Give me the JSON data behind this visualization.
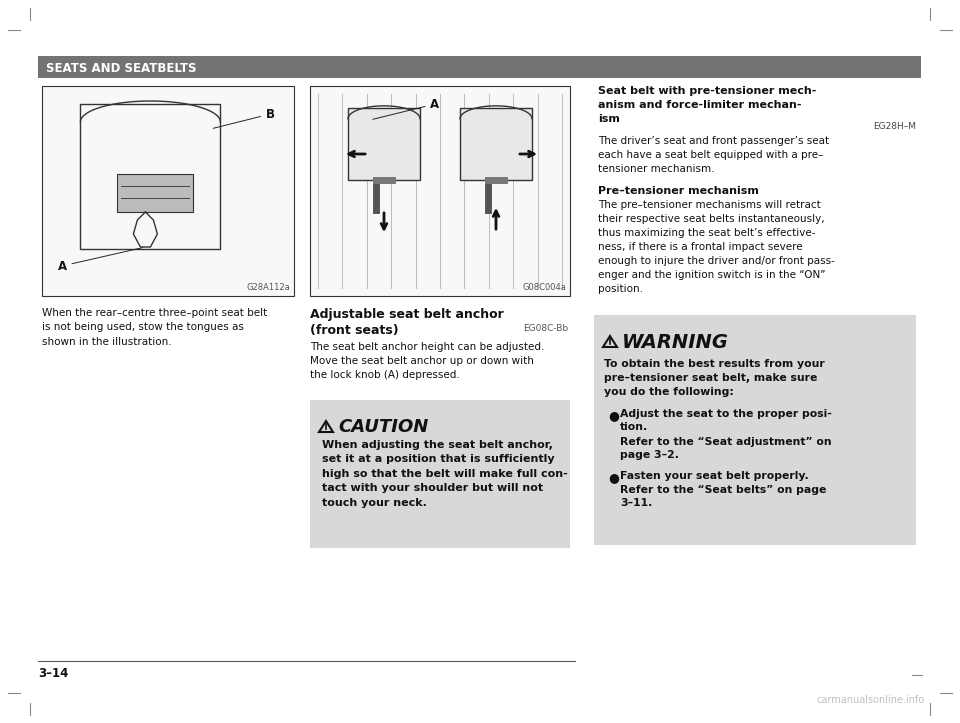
{
  "page_bg": "#ffffff",
  "header_bg": "#737373",
  "header_text": "SEATS AND SEATBELTS",
  "header_text_color": "#ffffff",
  "page_number": "3–14",
  "left_img_label": "G28A112a",
  "left_caption": "When the rear–centre three–point seat belt\nis not being used, stow the tongues as\nshown in the illustration.",
  "right_img_label": "G08C004a",
  "adj_title1": "Adjustable seat belt anchor",
  "adj_title2": "(front seats)",
  "adj_code": "EG08C-Bb",
  "adj_body": "The seat belt anchor height can be adjusted.\nMove the seat belt anchor up or down with\nthe lock knob (A) depressed.",
  "caution_title": "CAUTION",
  "caution_bg": "#d8d8d8",
  "caution_text": "When adjusting the seat belt anchor,\nset it at a position that is sufficiently\nhigh so that the belt will make full con-\ntact with your shoulder but will not\ntouch your neck.",
  "warning_title": "WARNING",
  "warning_bg": "#d8d8d8",
  "warning_intro": "To obtain the best results from your\npre–tensioner seat belt, make sure\nyou do the following:",
  "rc_title1": "Seat belt with pre-tensioner mech-",
  "rc_title2": "anism and force-limiter mechan-",
  "rc_title3": "ism",
  "rc_code": "EG28H–M",
  "rc_body": "The driver’s seat and front passenger’s seat\neach have a seat belt equipped with a pre–\ntensioner mechanism.",
  "pre_title": "Pre–tensioner mechanism",
  "pre_body": "The pre–tensioner mechanisms will retract\ntheir respective seat belts instantaneously,\nthus maximizing the seat belt’s effective-\nness, if there is a frontal impact severe\nenough to injure the driver and/or front pass-\nenger and the ignition switch is in the “ON”\nposition.",
  "bullet1_bold": "Adjust the seat to the proper posi-\ntion.",
  "bullet1_ref": "Refer to the “Seat adjustment” on\npage 3–2.",
  "bullet2_bold": "Fasten your seat belt properly.",
  "bullet2_ref": "Refer to the “Seat belts” on page\n3–11.",
  "watermark": "carmanualsonline.info",
  "mark_color": "#888888"
}
